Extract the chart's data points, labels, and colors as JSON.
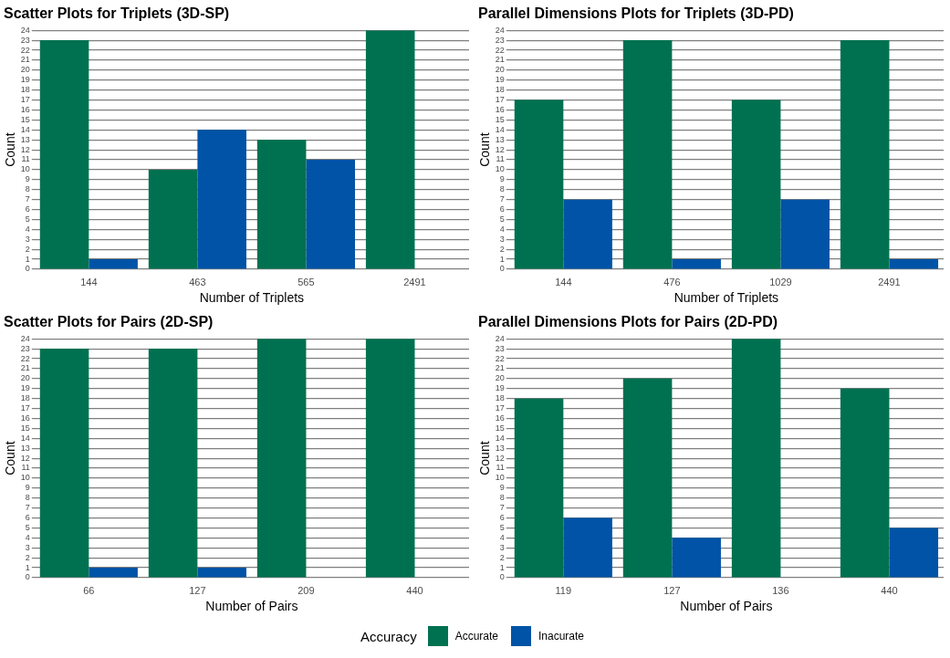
{
  "chart_data": [
    {
      "type": "bar",
      "title": "Scatter Plots for Triplets (3D-SP)",
      "xlabel": "Number of Triplets",
      "ylabel": "Count",
      "categories": [
        "144",
        "463",
        "565",
        "2491"
      ],
      "series": [
        {
          "name": "Accurate",
          "color": "#007150",
          "values": [
            23,
            10,
            13,
            24
          ]
        },
        {
          "name": "Inacurate",
          "color": "#0053a6",
          "values": [
            1,
            14,
            11,
            0
          ]
        }
      ],
      "ylim": [
        0,
        24
      ],
      "yticks": [
        0,
        1,
        2,
        3,
        4,
        5,
        6,
        7,
        8,
        9,
        10,
        11,
        12,
        13,
        14,
        15,
        16,
        17,
        18,
        19,
        20,
        21,
        22,
        23,
        24
      ],
      "grid": "y",
      "legend": "bottom",
      "legend_title": "Accuracy"
    },
    {
      "type": "bar",
      "title": "Parallel Dimensions Plots for Triplets (3D-PD)",
      "xlabel": "Number of Triplets",
      "ylabel": "Count",
      "categories": [
        "144",
        "476",
        "1029",
        "2491"
      ],
      "series": [
        {
          "color": "#007150",
          "values": [
            17,
            23,
            17,
            23
          ]
        },
        {
          "color": "#0053a6",
          "values": [
            7,
            1,
            7,
            1
          ]
        }
      ],
      "ylim": [
        0,
        24
      ],
      "yticks": [
        0,
        1,
        2,
        3,
        4,
        5,
        6,
        7,
        8,
        9,
        10,
        11,
        12,
        13,
        14,
        15,
        16,
        17,
        18,
        19,
        20,
        21,
        22,
        23,
        24
      ],
      "grid": "y"
    },
    {
      "type": "bar",
      "title": "Scatter Plots for Pairs (2D-SP)",
      "xlabel": "Number of Pairs",
      "ylabel": "Count",
      "categories": [
        "66",
        "127",
        "209",
        "440"
      ],
      "series": [
        {
          "color": "#007150",
          "values": [
            23,
            23,
            24,
            24
          ]
        },
        {
          "color": "#0053a6",
          "values": [
            1,
            1,
            0,
            0
          ]
        }
      ],
      "ylim": [
        0,
        24
      ],
      "yticks": [
        0,
        1,
        2,
        3,
        4,
        5,
        6,
        7,
        8,
        9,
        10,
        11,
        12,
        13,
        14,
        15,
        16,
        17,
        18,
        19,
        20,
        21,
        22,
        23,
        24
      ],
      "grid": "y"
    },
    {
      "type": "bar",
      "title": "Parallel Dimensions Plots for Pairs (2D-PD)",
      "xlabel": "Number of Pairs",
      "ylabel": "Count",
      "categories": [
        "119",
        "127",
        "136",
        "440"
      ],
      "series": [
        {
          "color": "#007150",
          "values": [
            18,
            20,
            24,
            19
          ]
        },
        {
          "color": "#0053a6",
          "values": [
            6,
            4,
            0,
            5
          ]
        }
      ],
      "ylim": [
        0,
        24
      ],
      "yticks": [
        0,
        1,
        2,
        3,
        4,
        5,
        6,
        7,
        8,
        9,
        10,
        11,
        12,
        13,
        14,
        15,
        16,
        17,
        18,
        19,
        20,
        21,
        22,
        23,
        24
      ],
      "grid": "y"
    }
  ]
}
